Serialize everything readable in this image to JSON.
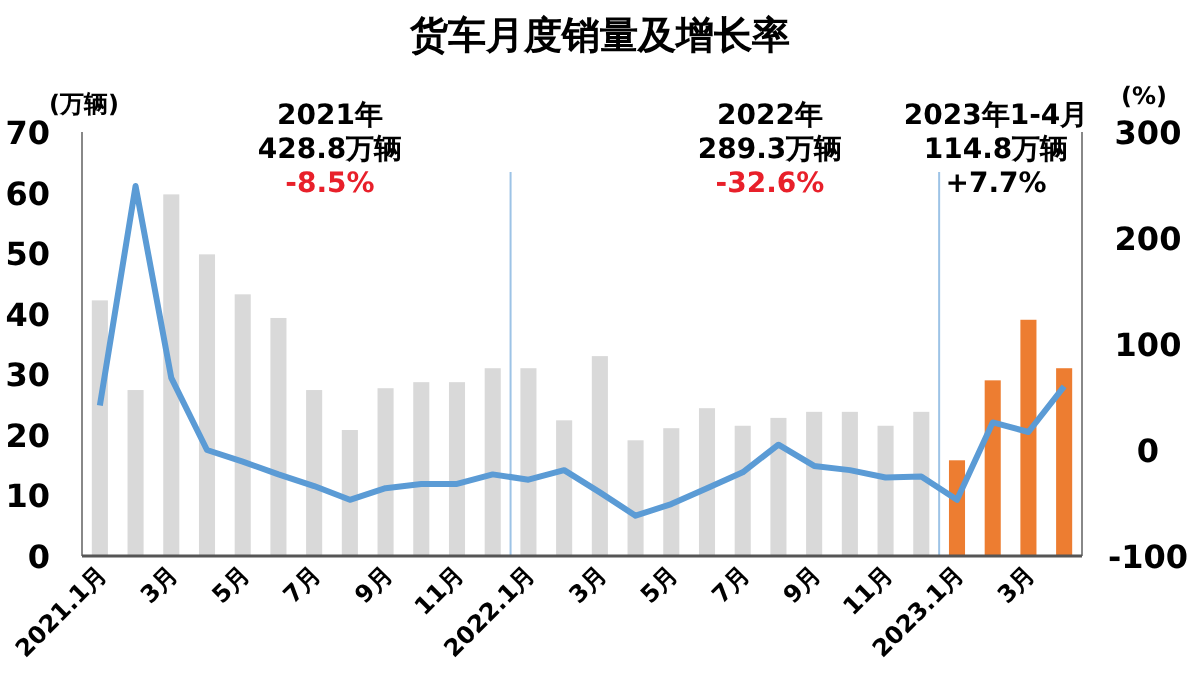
{
  "chart_data": {
    "type": "bar",
    "title": "货车月度销量及增长率",
    "ylabel": "(万辆)",
    "y2label": "(%)",
    "categories": [
      "2021.1月",
      null,
      "3月",
      null,
      "5月",
      null,
      "7月",
      null,
      "9月",
      null,
      "11月",
      null,
      "2022.1月",
      null,
      "3月",
      null,
      "5月",
      null,
      "7月",
      null,
      "9月",
      null,
      "11月",
      null,
      "2023.1月",
      null,
      "3月",
      null
    ],
    "series": [
      {
        "colors": [
          "#d9d9d9",
          "#d9d9d9",
          "#d9d9d9",
          "#d9d9d9",
          "#d9d9d9",
          "#d9d9d9",
          "#d9d9d9",
          "#d9d9d9",
          "#d9d9d9",
          "#d9d9d9",
          "#d9d9d9",
          "#d9d9d9",
          "#d9d9d9",
          "#d9d9d9",
          "#d9d9d9",
          "#d9d9d9",
          "#d9d9d9",
          "#d9d9d9",
          "#d9d9d9",
          "#d9d9d9",
          "#d9d9d9",
          "#d9d9d9",
          "#d9d9d9",
          "#d9d9d9",
          "#ed7d31",
          "#ed7d31",
          "#ed7d31",
          "#ed7d31"
        ],
        "values": [
          42.2,
          27.4,
          59.7,
          49.8,
          43.2,
          39.3,
          27.4,
          20.8,
          27.7,
          28.7,
          28.7,
          31,
          31,
          22.4,
          33,
          19.1,
          21.1,
          24.4,
          21.5,
          22.8,
          23.8,
          23.8,
          21.5,
          23.8,
          15.8,
          29,
          39,
          31
        ]
      },
      {
        "type": "line",
        "axis": "y2",
        "color": "#5b9bd5",
        "marker": "none",
        "line_style": "solid",
        "values": [
          42,
          249,
          68,
          0,
          -11,
          -23,
          -34,
          -47,
          -36,
          -32,
          -32,
          -23,
          -28,
          -19,
          -40,
          -62,
          -51,
          -36,
          -21,
          5,
          -15,
          -19,
          -26,
          -25,
          -47,
          26,
          17,
          60
        ]
      }
    ],
    "ylim": [
      0,
      70
    ],
    "yticks": [
      0,
      10,
      20,
      30,
      40,
      50,
      60,
      70
    ],
    "y2lim": [
      -100,
      300
    ],
    "y2ticks": [
      -100,
      0,
      100,
      200,
      300
    ],
    "annotations": [
      "2021年",
      "428.8万辆",
      "-8.5%",
      "2022年",
      "289.3万辆",
      "-32.6%",
      "2023年1-4月",
      "114.8万辆",
      "+7.7%"
    ],
    "grid": false
  }
}
